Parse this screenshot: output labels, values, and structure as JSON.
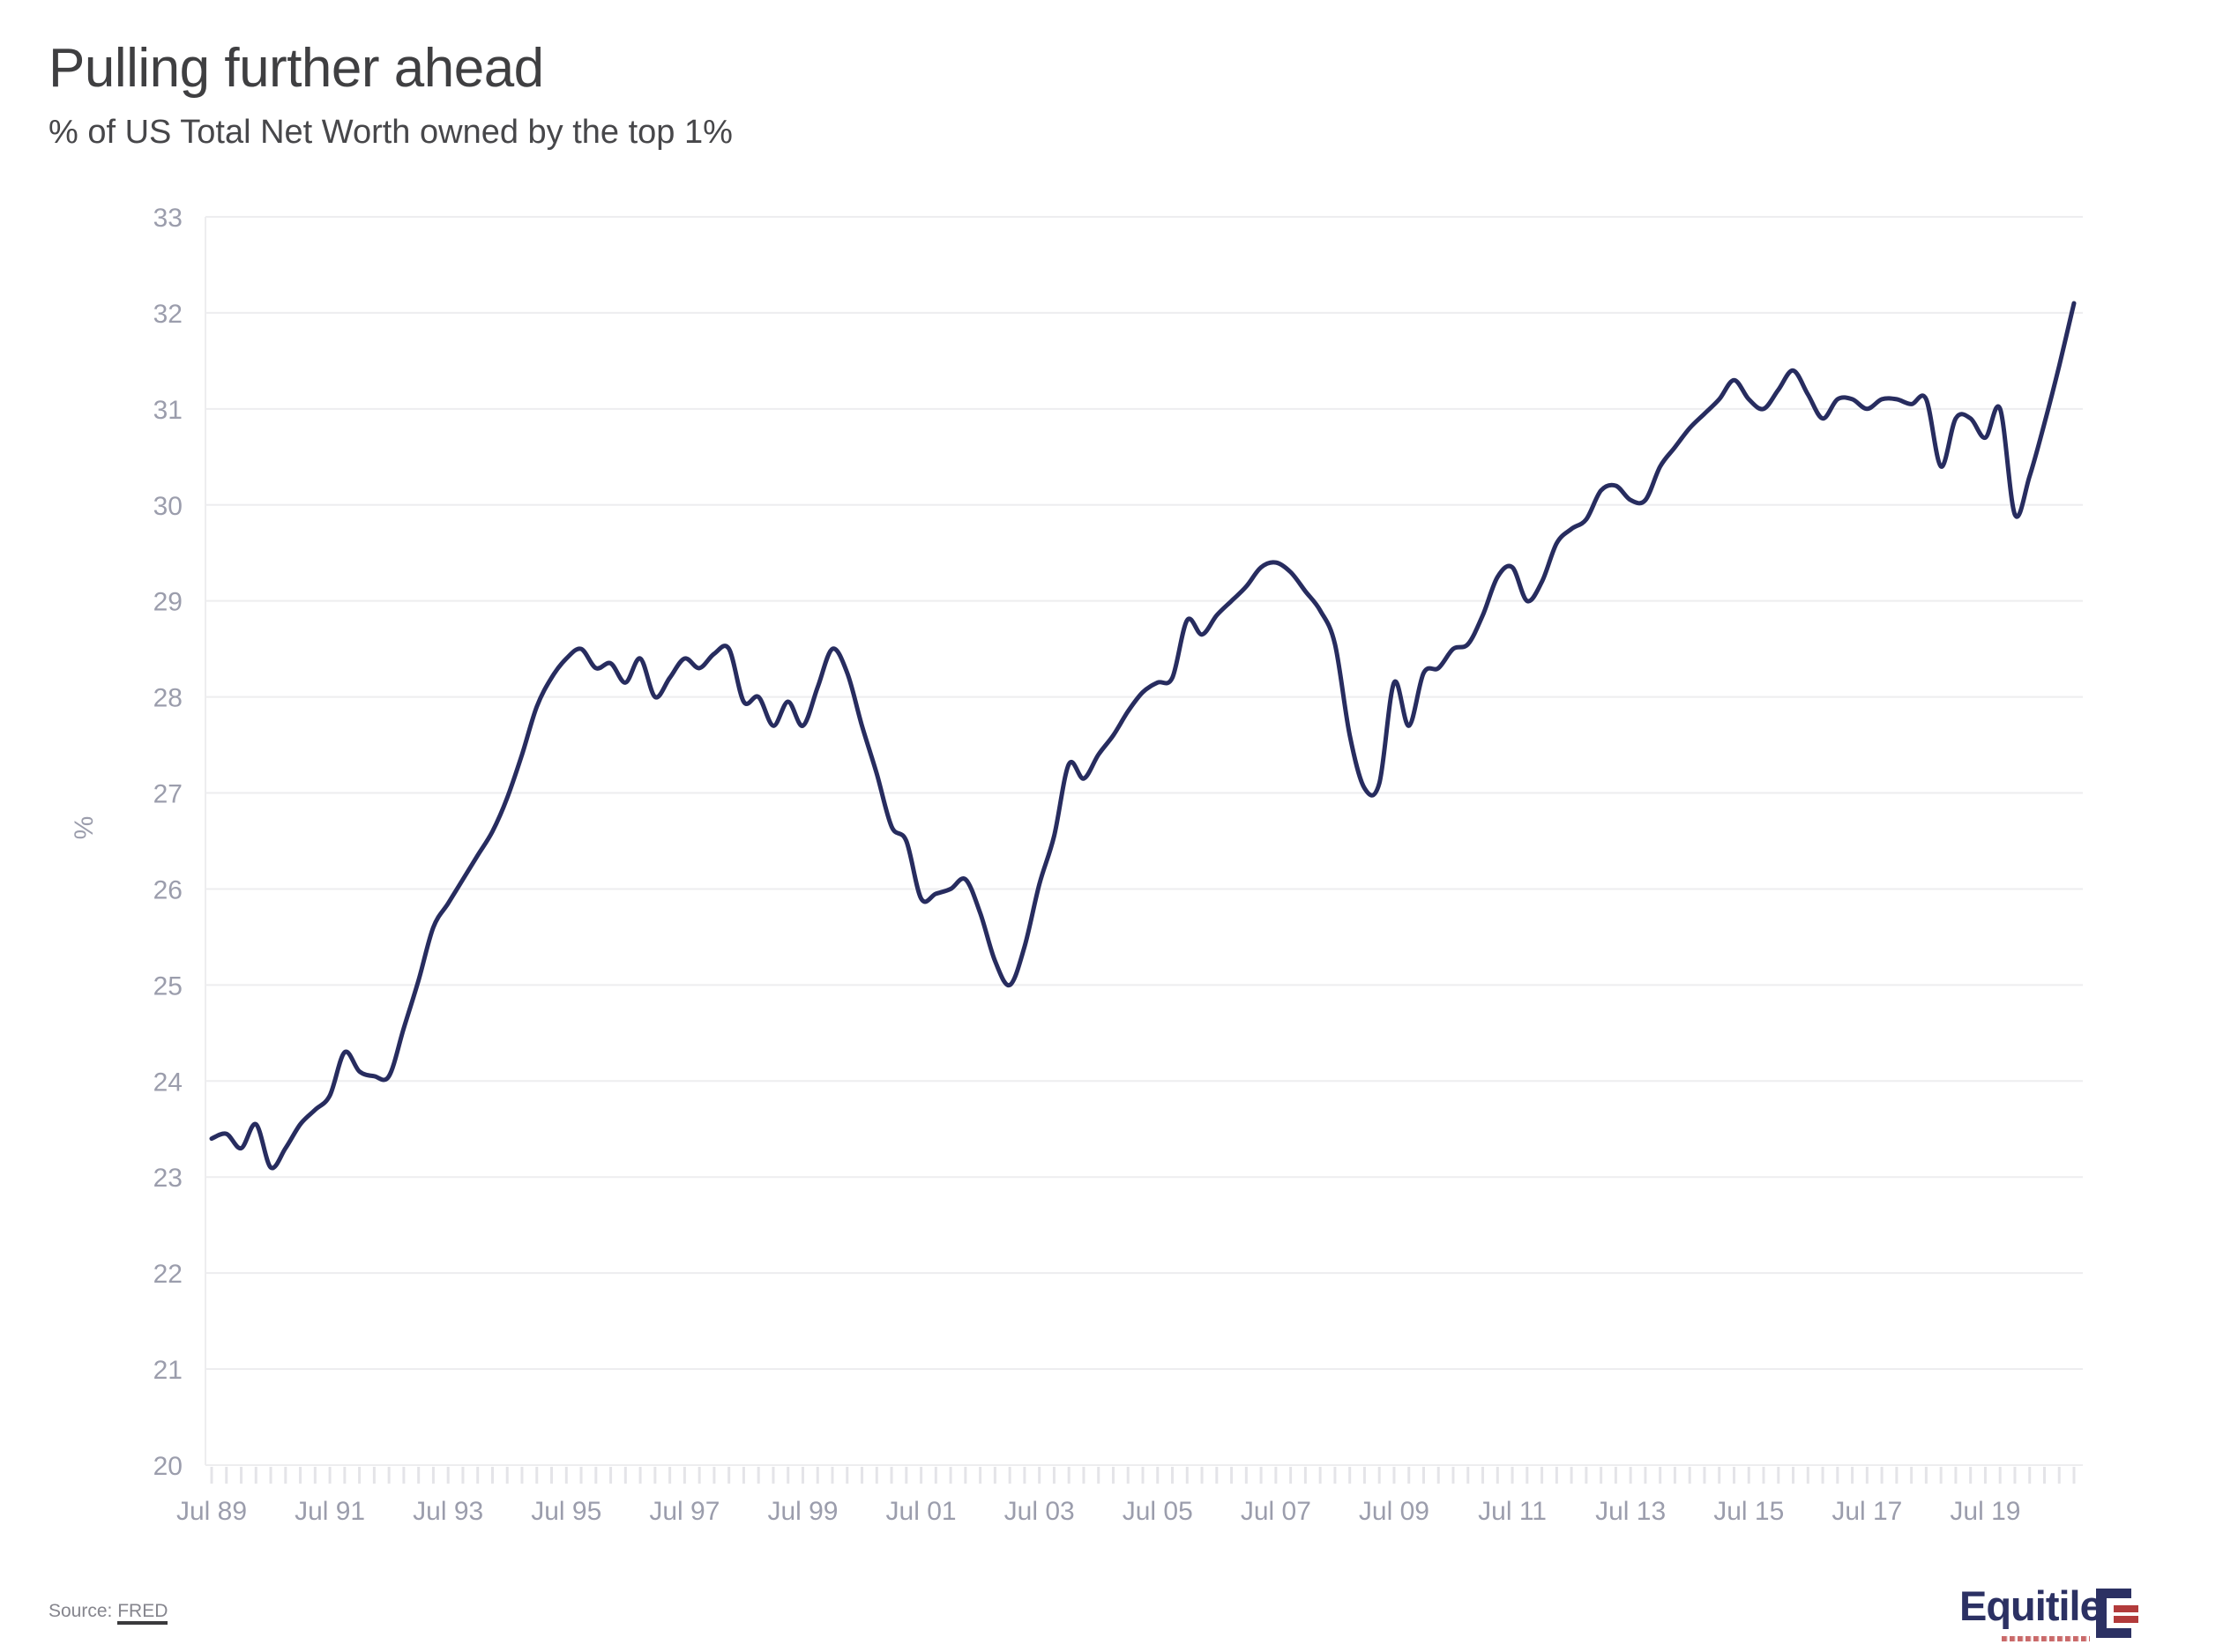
{
  "header": {
    "title": "Pulling further ahead",
    "subtitle": "% of US Total Net Worth owned by the top 1%"
  },
  "footer": {
    "source_label": "Source:",
    "source_link": "FRED",
    "logo_wordmark": "Equitile"
  },
  "colors": {
    "line": "#272c5f",
    "axis_label": "#9b9dac",
    "gridline": "#ededef",
    "tick": "#e4e4e8",
    "title": "#3f3f41",
    "subtitle": "#47474a",
    "source": "#85858d",
    "logo_navy": "#2c3163",
    "logo_red": "#b23b3b"
  },
  "chart_data": {
    "type": "line",
    "title": "Pulling further ahead",
    "subtitle": "% of US Total Net Worth owned by the top 1%",
    "xlabel": "",
    "ylabel": "%",
    "ylim": [
      20,
      33
    ],
    "y_ticks": [
      20,
      21,
      22,
      23,
      24,
      25,
      26,
      27,
      28,
      29,
      30,
      31,
      32,
      33
    ],
    "x_tick_labels": [
      "Jul 89",
      "Jul 91",
      "Jul 93",
      "Jul 95",
      "Jul 97",
      "Jul 99",
      "Jul 01",
      "Jul 03",
      "Jul 05",
      "Jul 07",
      "Jul 09",
      "Jul 11",
      "Jul 13",
      "Jul 15",
      "Jul 17",
      "Jul 19"
    ],
    "x_major_every_n_points": 8,
    "minor_ticks": "quarterly",
    "grid": "horizontal",
    "legend": "none",
    "series": [
      {
        "name": "% of US Total Net Worth owned by the top 1%",
        "x_start": "1989 Q3",
        "x_end": "2021 Q1",
        "frequency": "quarterly",
        "values": [
          23.4,
          23.45,
          23.3,
          23.55,
          23.1,
          23.3,
          23.55,
          23.7,
          23.85,
          24.3,
          24.1,
          24.05,
          24.05,
          24.55,
          25.05,
          25.6,
          25.85,
          26.1,
          26.35,
          26.6,
          26.95,
          27.4,
          27.9,
          28.2,
          28.4,
          28.5,
          28.3,
          28.35,
          28.15,
          28.4,
          28.0,
          28.2,
          28.4,
          28.3,
          28.45,
          28.5,
          27.95,
          28.0,
          27.7,
          27.95,
          27.7,
          28.1,
          28.5,
          28.25,
          27.7,
          27.2,
          26.65,
          26.5,
          25.9,
          25.95,
          26.0,
          26.1,
          25.75,
          25.25,
          25.0,
          25.4,
          26.05,
          26.55,
          27.3,
          27.15,
          27.4,
          27.6,
          27.85,
          28.05,
          28.15,
          28.2,
          28.8,
          28.65,
          28.85,
          29.0,
          29.15,
          29.35,
          29.4,
          29.3,
          29.1,
          28.9,
          28.55,
          27.6,
          27.05,
          27.1,
          28.15,
          27.7,
          28.25,
          28.3,
          28.5,
          28.55,
          28.85,
          29.25,
          29.35,
          29.0,
          29.2,
          29.6,
          29.75,
          29.85,
          30.15,
          30.2,
          30.05,
          30.05,
          30.4,
          30.6,
          30.8,
          30.95,
          31.1,
          31.3,
          31.1,
          31.0,
          31.2,
          31.4,
          31.15,
          30.9,
          31.1,
          31.1,
          31.0,
          31.1,
          31.1,
          31.05,
          31.1,
          30.4,
          30.9,
          30.9,
          30.7,
          31.0,
          29.9,
          30.3,
          30.85,
          31.45,
          32.1
        ]
      }
    ]
  }
}
